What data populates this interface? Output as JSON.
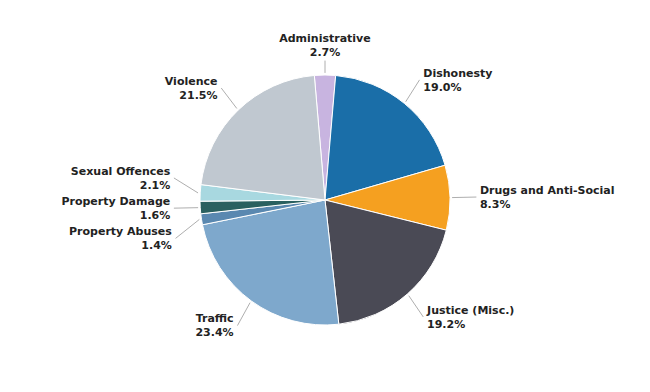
{
  "chart_data": {
    "type": "pie",
    "categories": [
      "Administrative",
      "Dishonesty",
      "Drugs and Anti-Social",
      "Justice (Misc.)",
      "Traffic",
      "Property Abuses",
      "Property Damage",
      "Sexual Offences",
      "Violence"
    ],
    "values": [
      2.7,
      19.0,
      8.3,
      19.2,
      23.4,
      1.4,
      1.6,
      2.1,
      21.5
    ],
    "value_labels": [
      "2.7%",
      "19.0%",
      "8.3%",
      "19.2%",
      "23.4%",
      "1.4%",
      "1.6%",
      "2.1%",
      "21.5%"
    ],
    "colors": [
      "#c8b4e0",
      "#1a6ea8",
      "#f5a020",
      "#4a4a55",
      "#7ea8cc",
      "#5a88b0",
      "#2a6060",
      "#a8d8e0",
      "#c0c8d0"
    ],
    "data_labels": true
  }
}
